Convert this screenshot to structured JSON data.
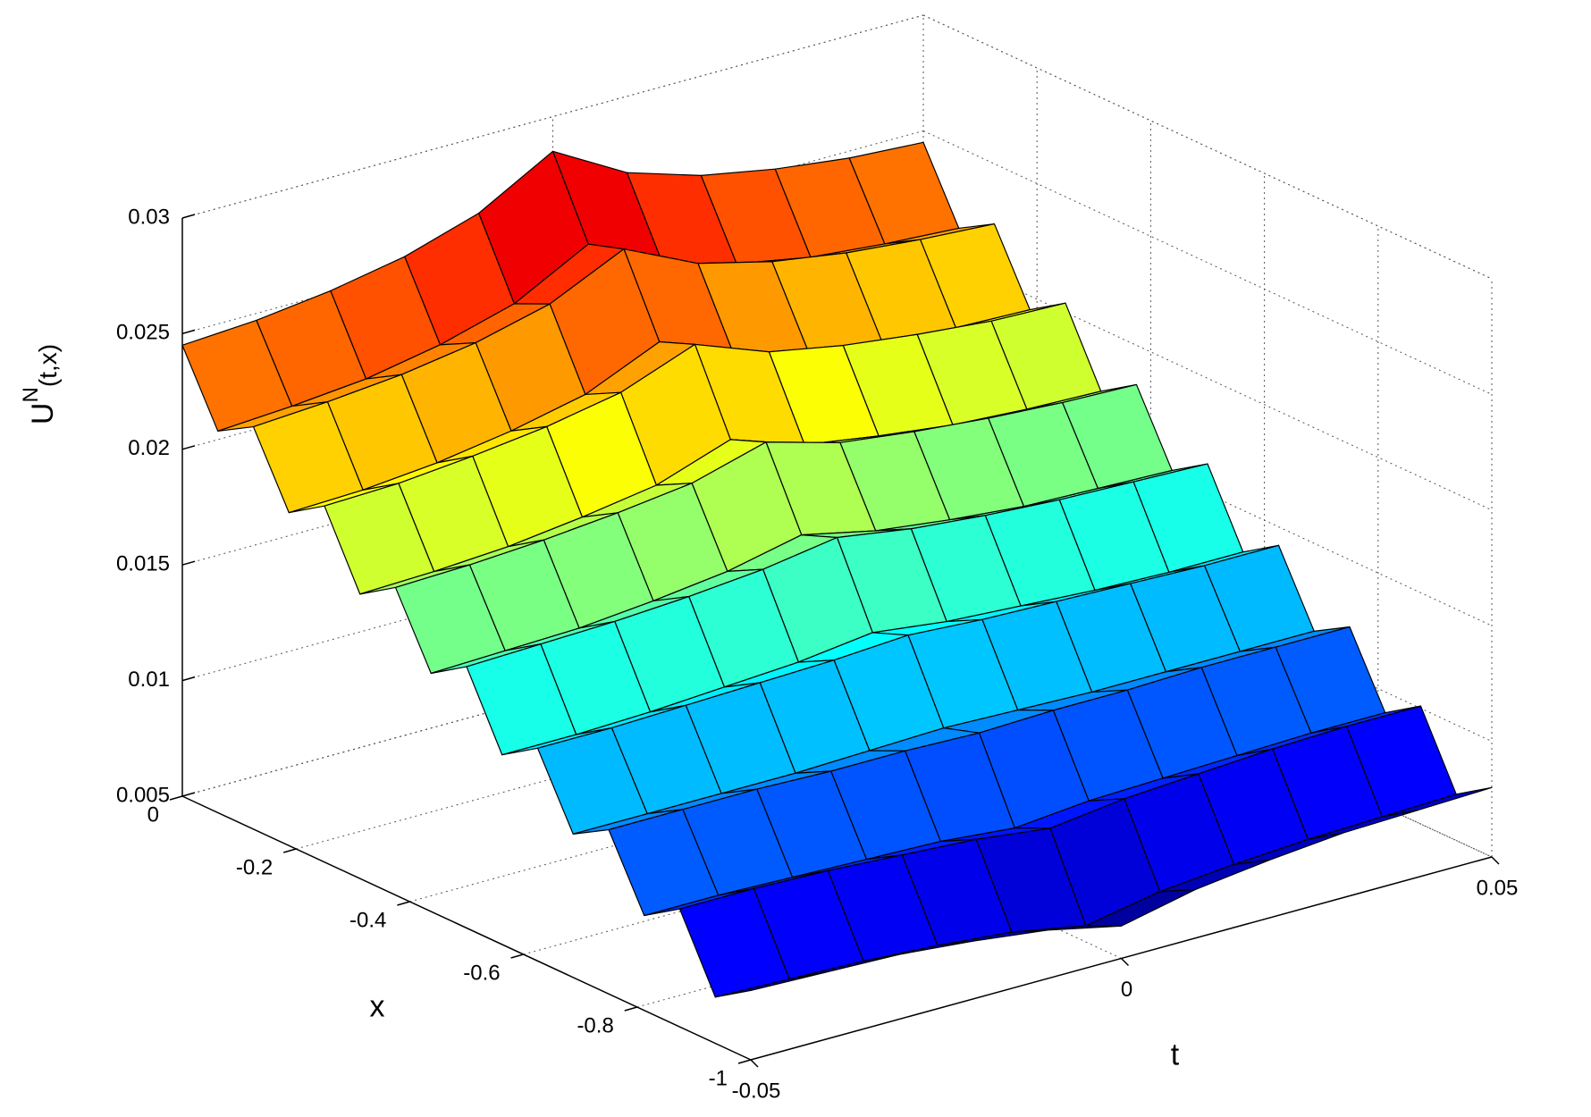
{
  "chart_data": {
    "type": "surface",
    "t": [
      -0.05,
      -0.04,
      -0.03,
      -0.02,
      -0.01,
      0,
      0.01,
      0.02,
      0.03,
      0.04,
      0.05
    ],
    "x": [
      0,
      -0.0625,
      -0.125,
      -0.1875,
      -0.25,
      -0.3125,
      -0.375,
      -0.4375,
      -0.5,
      -0.5625,
      -0.625,
      -0.6875,
      -0.75,
      -0.8125,
      -0.875,
      -0.9375,
      -1
    ],
    "z": [
      [
        0.0245,
        0.0247,
        0.0251,
        0.0257,
        0.0267,
        0.0285,
        0.0267,
        0.0257,
        0.0251,
        0.0247,
        0.0245
      ],
      [
        0.0215,
        0.0217,
        0.022,
        0.0226,
        0.0235,
        0.0252,
        0.0235,
        0.0226,
        0.022,
        0.0217,
        0.0215
      ],
      [
        0.0224,
        0.0226,
        0.0229,
        0.0234,
        0.0242,
        0.0257,
        0.0242,
        0.0234,
        0.0229,
        0.0226,
        0.0224
      ],
      [
        0.0194,
        0.0195,
        0.0198,
        0.0203,
        0.021,
        0.0224,
        0.021,
        0.0203,
        0.0198,
        0.0195,
        0.0194
      ],
      [
        0.0204,
        0.0205,
        0.0208,
        0.0212,
        0.0218,
        0.023,
        0.0218,
        0.0212,
        0.0208,
        0.0205,
        0.0204
      ],
      [
        0.0173,
        0.0174,
        0.0176,
        0.018,
        0.0185,
        0.0196,
        0.0185,
        0.018,
        0.0176,
        0.0174,
        0.0173
      ],
      [
        0.0183,
        0.0184,
        0.0186,
        0.0189,
        0.0193,
        0.0202,
        0.0193,
        0.0189,
        0.0186,
        0.0184,
        0.0183
      ],
      [
        0.0153,
        0.0154,
        0.0155,
        0.0158,
        0.0162,
        0.0169,
        0.0162,
        0.0158,
        0.0155,
        0.0154,
        0.0153
      ],
      [
        0.0163,
        0.0164,
        0.0165,
        0.0167,
        0.017,
        0.0175,
        0.017,
        0.0167,
        0.0165,
        0.0164,
        0.0163
      ],
      [
        0.0132,
        0.0132,
        0.0133,
        0.0135,
        0.0137,
        0.0141,
        0.0137,
        0.0135,
        0.0133,
        0.0132,
        0.0132
      ],
      [
        0.0142,
        0.0142,
        0.0143,
        0.0144,
        0.0145,
        0.0147,
        0.0145,
        0.0144,
        0.0143,
        0.0142,
        0.0142
      ],
      [
        0.0112,
        0.0112,
        0.0112,
        0.0112,
        0.0113,
        0.0114,
        0.0113,
        0.0112,
        0.0112,
        0.0112,
        0.0112
      ],
      [
        0.0121,
        0.0121,
        0.0121,
        0.012,
        0.012,
        0.0119,
        0.012,
        0.012,
        0.0121,
        0.0121,
        0.0121
      ],
      [
        0.0091,
        0.0091,
        0.009,
        0.0089,
        0.0088,
        0.0085,
        0.0088,
        0.0089,
        0.009,
        0.0091,
        0.0091
      ],
      [
        0.0101,
        0.0101,
        0.01,
        0.0098,
        0.0096,
        0.0092,
        0.0096,
        0.0098,
        0.01,
        0.0101,
        0.0101
      ],
      [
        0.007,
        0.0069,
        0.0068,
        0.0066,
        0.0063,
        0.0057,
        0.0063,
        0.0066,
        0.0068,
        0.0069,
        0.007
      ],
      [
        0.008,
        0.0079,
        0.0078,
        0.0075,
        0.0071,
        0.0064,
        0.0071,
        0.0075,
        0.0078,
        0.0079,
        0.008
      ]
    ],
    "tlim": [
      -0.05,
      0.05
    ],
    "xlim": [
      -1,
      0
    ],
    "zlim": [
      0.005,
      0.03
    ],
    "tticks": [
      -0.05,
      0,
      0.05
    ],
    "xticks": [
      0,
      -0.2,
      -0.4,
      -0.6,
      -0.8,
      -1
    ],
    "zticks": [
      0.005,
      0.01,
      0.015,
      0.02,
      0.025,
      0.03
    ],
    "tlabel": "t",
    "xlabel": "x",
    "zlabel": [
      "U",
      "N",
      "(t,x)"
    ],
    "colormap": "jet",
    "grid": true
  }
}
